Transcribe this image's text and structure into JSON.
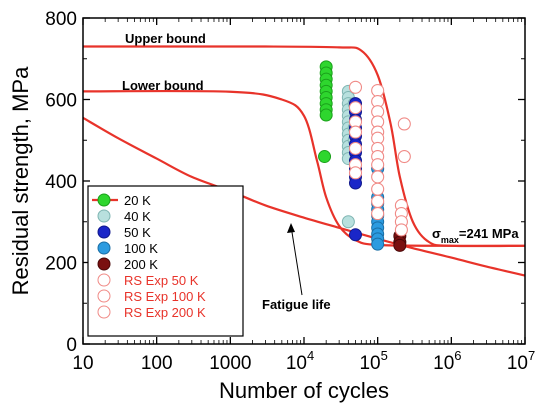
{
  "chart_data": {
    "type": "scatter",
    "title": "",
    "xlabel": "Number of cycles",
    "ylabel": "Residual strength, MPa",
    "x_scale": "log",
    "xlim": [
      10,
      10000000
    ],
    "ylim": [
      0,
      800
    ],
    "x_ticks": [
      {
        "value": 10,
        "label": "10"
      },
      {
        "value": 100,
        "label": "100"
      },
      {
        "value": 1000,
        "label": "1000"
      },
      {
        "value": 10000,
        "base": "10",
        "exp": "4"
      },
      {
        "value": 100000,
        "base": "10",
        "exp": "5"
      },
      {
        "value": 1000000,
        "base": "10",
        "exp": "6"
      },
      {
        "value": 10000000,
        "base": "10",
        "exp": "7"
      }
    ],
    "y_ticks": [
      0,
      200,
      400,
      600,
      800
    ],
    "grid": false,
    "legend_position": "bottom-left",
    "annotations": {
      "upper_bound": "Upper bound",
      "lower_bound": "Lower bound",
      "fatigue_life": "Fatigue life",
      "sigma": "σ",
      "sigma_sub": "max",
      "sigma_value": "=241 MPa"
    },
    "curves": [
      {
        "key": "upper_bound",
        "color": "#e8332a",
        "x": [
          10,
          3000,
          30000,
          60000,
          100000,
          150000,
          200000,
          300000,
          500000,
          1000000,
          10000000
        ],
        "y": [
          730,
          730,
          728,
          720,
          660,
          540,
          410,
          300,
          250,
          241,
          241
        ]
      },
      {
        "key": "lower_bound",
        "color": "#e8332a",
        "x": [
          10,
          1000,
          5000,
          10000,
          15000,
          20000,
          30000,
          50000,
          100000,
          1000000,
          10000000
        ],
        "y": [
          620,
          619,
          600,
          560,
          450,
          360,
          290,
          255,
          243,
          241,
          241
        ]
      },
      {
        "key": "fatigue_life",
        "color": "#e8332a",
        "x": [
          10,
          30,
          100,
          300,
          1000,
          3000,
          10000,
          30000,
          100000,
          300000,
          1000000,
          3000000,
          10000000
        ],
        "y": [
          555,
          505,
          455,
          410,
          375,
          340,
          310,
          285,
          258,
          235,
          212,
          190,
          168
        ]
      }
    ],
    "series": [
      {
        "name": "20 K",
        "fill": "#2ed62e",
        "stroke": "#1aa01a",
        "marker": "filled",
        "line": true,
        "points": [
          [
            20000,
            680
          ],
          [
            20000,
            665
          ],
          [
            20000,
            650
          ],
          [
            20000,
            635
          ],
          [
            20000,
            620
          ],
          [
            20000,
            605
          ],
          [
            20000,
            590
          ],
          [
            20000,
            575
          ],
          [
            20000,
            562
          ],
          [
            19000,
            460
          ]
        ]
      },
      {
        "name": "40 K",
        "fill": "#b8e0de",
        "stroke": "#7fb5b2",
        "marker": "filled",
        "line": false,
        "points": [
          [
            40000,
            620
          ],
          [
            40000,
            605
          ],
          [
            40000,
            590
          ],
          [
            40000,
            575
          ],
          [
            40000,
            560
          ],
          [
            40000,
            545
          ],
          [
            40000,
            530
          ],
          [
            40000,
            515
          ],
          [
            40000,
            500
          ],
          [
            40000,
            485
          ],
          [
            40000,
            470
          ],
          [
            40000,
            455
          ],
          [
            40000,
            300
          ],
          [
            48000,
            590
          ],
          [
            48000,
            530
          ],
          [
            48000,
            500
          ]
        ]
      },
      {
        "name": "50 K",
        "fill": "#1a26c8",
        "stroke": "#10188c",
        "marker": "filled",
        "line": false,
        "points": [
          [
            50000,
            590
          ],
          [
            50000,
            570
          ],
          [
            50000,
            550
          ],
          [
            50000,
            530
          ],
          [
            50000,
            510
          ],
          [
            50000,
            490
          ],
          [
            50000,
            470
          ],
          [
            50000,
            450
          ],
          [
            50000,
            430
          ],
          [
            50000,
            410
          ],
          [
            50000,
            395
          ],
          [
            50000,
            268
          ]
        ]
      },
      {
        "name": "100 K",
        "fill": "#2c9be0",
        "stroke": "#1a6ea5",
        "marker": "filled",
        "line": false,
        "points": [
          [
            100000,
            430
          ],
          [
            100000,
            360
          ],
          [
            100000,
            345
          ],
          [
            100000,
            330
          ],
          [
            100000,
            315
          ],
          [
            100000,
            300
          ],
          [
            100000,
            285
          ],
          [
            100000,
            270
          ],
          [
            100000,
            258
          ],
          [
            100000,
            245
          ]
        ]
      },
      {
        "name": "200 K",
        "fill": "#7a1010",
        "stroke": "#4a0808",
        "marker": "filled",
        "line": false,
        "points": [
          [
            200000,
            265
          ],
          [
            200000,
            250
          ],
          [
            200000,
            242
          ]
        ]
      },
      {
        "name": "RS Exp 50 K",
        "fill": "#ffffff",
        "stroke": "#f08a86",
        "marker": "open",
        "line": false,
        "points": [
          [
            50000,
            630
          ],
          [
            50000,
            580
          ],
          [
            50000,
            545
          ],
          [
            50000,
            520
          ],
          [
            50000,
            480
          ],
          [
            50000,
            440
          ],
          [
            50000,
            420
          ]
        ]
      },
      {
        "name": "RS Exp 100 K",
        "fill": "#ffffff",
        "stroke": "#f08a86",
        "marker": "open",
        "line": false,
        "points": [
          [
            100000,
            622
          ],
          [
            100000,
            595
          ],
          [
            100000,
            570
          ],
          [
            100000,
            545
          ],
          [
            100000,
            520
          ],
          [
            100000,
            505
          ],
          [
            100000,
            480
          ],
          [
            100000,
            460
          ],
          [
            100000,
            440
          ],
          [
            100000,
            410
          ],
          [
            100000,
            380
          ],
          [
            100000,
            350
          ],
          [
            100000,
            320
          ]
        ]
      },
      {
        "name": "RS Exp 200 K",
        "fill": "#ffffff",
        "stroke": "#f08a86",
        "marker": "open",
        "line": false,
        "points": [
          [
            230000,
            540
          ],
          [
            230000,
            460
          ],
          [
            210000,
            340
          ],
          [
            210000,
            320
          ],
          [
            210000,
            300
          ],
          [
            210000,
            280
          ]
        ]
      }
    ]
  }
}
